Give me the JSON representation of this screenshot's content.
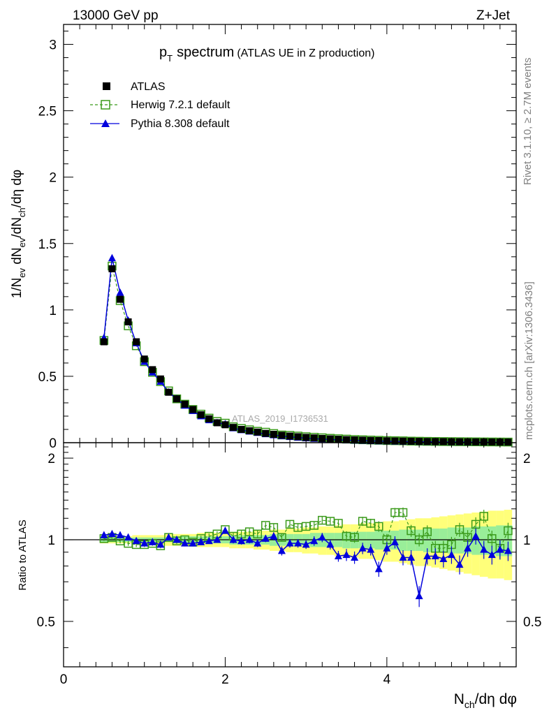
{
  "header": {
    "energy": "13000 GeV pp",
    "process": "Z+Jet"
  },
  "title": {
    "main": "p",
    "main_sub": "T",
    "main_rest": "spectrum",
    "paren": "(ATLAS UE in Z production)"
  },
  "side": {
    "rivet": "Rivet 3.1.10, ≥ 2.7M events",
    "mcplots": "mcplots.cern.ch [arXiv:1306.3436]"
  },
  "watermark": "ATLAS_2019_I1736531",
  "ratio_ylabel": "Ratio to ATLAS",
  "colors": {
    "data": "#000000",
    "herwig": "#3a9a1a",
    "pythia": "#0000dd",
    "band_yellow": "#ffff7a",
    "band_green": "#99ee99"
  },
  "chart_data": [
    {
      "type": "line",
      "title": "pT spectrum (ATLAS UE in Z production)",
      "xlabel": "Nch/dη dφ",
      "ylabel": "1/Nev dNev/dNch/dη dφ",
      "xlim": [
        0,
        5.6
      ],
      "ylim": [
        0,
        3.15
      ],
      "x_ticks": [
        0,
        2,
        4
      ],
      "y_ticks": [
        "0",
        "0.5",
        "1",
        "1.5",
        "2",
        "2.5",
        "3"
      ],
      "legend_position": "top-left",
      "x": [
        0.5,
        0.6,
        0.7,
        0.8,
        0.9,
        1.0,
        1.1,
        1.2,
        1.3,
        1.4,
        1.5,
        1.6,
        1.7,
        1.8,
        1.9,
        2.0,
        2.1,
        2.2,
        2.3,
        2.4,
        2.5,
        2.6,
        2.7,
        2.8,
        2.9,
        3.0,
        3.1,
        3.2,
        3.3,
        3.4,
        3.5,
        3.6,
        3.7,
        3.8,
        3.9,
        4.0,
        4.1,
        4.2,
        4.3,
        4.4,
        4.5,
        4.6,
        4.7,
        4.8,
        4.9,
        5.0,
        5.1,
        5.2,
        5.3,
        5.4,
        5.5
      ],
      "series": [
        {
          "name": "ATLAS",
          "marker": "filled-square",
          "values": [
            0.76,
            1.31,
            1.08,
            0.91,
            0.76,
            0.63,
            0.55,
            0.48,
            0.38,
            0.33,
            0.29,
            0.25,
            0.21,
            0.18,
            0.15,
            0.135,
            0.115,
            0.1,
            0.09,
            0.08,
            0.07,
            0.063,
            0.056,
            0.05,
            0.045,
            0.04,
            0.036,
            0.032,
            0.029,
            0.026,
            0.023,
            0.021,
            0.019,
            0.017,
            0.016,
            0.014,
            0.013,
            0.012,
            0.011,
            0.01,
            0.009,
            0.0085,
            0.008,
            0.0075,
            0.007,
            0.0065,
            0.006,
            0.0056,
            0.0052,
            0.0048,
            0.0045
          ]
        },
        {
          "name": "Herwig 7.2.1 default",
          "marker": "open-square",
          "values": [
            0.77,
            1.33,
            1.07,
            0.88,
            0.73,
            0.61,
            0.53,
            0.46,
            0.39,
            0.33,
            0.29,
            0.25,
            0.215,
            0.185,
            0.16,
            0.147,
            0.12,
            0.107,
            0.097,
            0.086,
            0.079,
            0.069,
            0.058,
            0.055,
            0.05,
            0.045,
            0.041,
            0.037,
            0.033,
            0.03,
            0.027,
            0.024,
            0.022,
            0.02,
            0.018,
            0.016,
            0.015,
            0.014,
            0.012,
            0.011,
            0.01,
            0.009,
            0.0085,
            0.008,
            0.0075,
            0.007,
            0.0065,
            0.006,
            0.0056,
            0.0052,
            0.0048
          ]
        },
        {
          "name": "Pythia 8.308 default",
          "marker": "filled-triangle",
          "values": [
            0.79,
            1.39,
            1.13,
            0.92,
            0.75,
            0.61,
            0.53,
            0.46,
            0.38,
            0.33,
            0.28,
            0.24,
            0.2,
            0.17,
            0.15,
            0.14,
            0.11,
            0.095,
            0.085,
            0.075,
            0.065,
            0.057,
            0.05,
            0.044,
            0.039,
            0.034,
            0.03,
            0.027,
            0.024,
            0.021,
            0.019,
            0.017,
            0.015,
            0.013,
            0.012,
            0.011,
            0.0095,
            0.0085,
            0.0078,
            0.007,
            0.0063,
            0.0057,
            0.0052,
            0.0048,
            0.0044,
            0.004,
            0.0037,
            0.0034,
            0.0031,
            0.0028,
            0.0026
          ]
        }
      ]
    },
    {
      "type": "line",
      "ylabel": "Ratio to ATLAS",
      "xlabel": "Nch/dη dφ",
      "xlim": [
        0,
        5.6
      ],
      "ylim": [
        0.34,
        2.28
      ],
      "y_ticks": [
        "0.5",
        "1",
        "2"
      ],
      "reference_line": 1,
      "x": [
        0.5,
        0.6,
        0.7,
        0.8,
        0.9,
        1.0,
        1.1,
        1.2,
        1.3,
        1.4,
        1.5,
        1.6,
        1.7,
        1.8,
        1.9,
        2.0,
        2.1,
        2.2,
        2.3,
        2.4,
        2.5,
        2.6,
        2.7,
        2.8,
        2.9,
        3.0,
        3.1,
        3.2,
        3.3,
        3.4,
        3.5,
        3.6,
        3.7,
        3.8,
        3.9,
        4.0,
        4.1,
        4.2,
        4.3,
        4.4,
        4.5,
        4.6,
        4.7,
        4.8,
        4.9,
        5.0,
        5.1,
        5.2,
        5.3,
        5.4,
        5.5
      ],
      "band_yellow_halfwidth": [
        0.03,
        0.03,
        0.03,
        0.03,
        0.04,
        0.04,
        0.04,
        0.04,
        0.05,
        0.05,
        0.05,
        0.05,
        0.06,
        0.06,
        0.06,
        0.06,
        0.07,
        0.07,
        0.07,
        0.08,
        0.08,
        0.09,
        0.09,
        0.1,
        0.1,
        0.11,
        0.11,
        0.12,
        0.12,
        0.13,
        0.14,
        0.14,
        0.15,
        0.15,
        0.16,
        0.17,
        0.17,
        0.18,
        0.19,
        0.2,
        0.2,
        0.21,
        0.22,
        0.23,
        0.24,
        0.25,
        0.26,
        0.27,
        0.28,
        0.28,
        0.29
      ],
      "band_green_halfwidth": [
        0.02,
        0.02,
        0.02,
        0.02,
        0.02,
        0.02,
        0.02,
        0.02,
        0.02,
        0.03,
        0.03,
        0.03,
        0.03,
        0.03,
        0.03,
        0.03,
        0.04,
        0.04,
        0.04,
        0.04,
        0.04,
        0.05,
        0.05,
        0.05,
        0.05,
        0.05,
        0.06,
        0.06,
        0.06,
        0.06,
        0.07,
        0.07,
        0.07,
        0.07,
        0.08,
        0.08,
        0.08,
        0.09,
        0.09,
        0.09,
        0.1,
        0.1,
        0.1,
        0.11,
        0.11,
        0.11,
        0.12,
        0.12,
        0.12,
        0.13,
        0.13
      ],
      "series": [
        {
          "name": "Herwig 7.2.1 default",
          "marker": "open-square",
          "values": [
            1.01,
            1.02,
            0.99,
            0.97,
            0.96,
            0.96,
            0.97,
            0.95,
            1.02,
            0.99,
            1.0,
            0.98,
            1.01,
            1.03,
            1.05,
            1.09,
            1.03,
            1.05,
            1.07,
            1.05,
            1.13,
            1.11,
            1.02,
            1.14,
            1.11,
            1.12,
            1.13,
            1.18,
            1.17,
            1.15,
            1.03,
            1.02,
            1.17,
            1.15,
            1.12,
            1.0,
            1.26,
            1.26,
            1.08,
            1.0,
            1.07,
            0.93,
            0.93,
            0.96,
            1.09,
            1.02,
            1.14,
            1.22,
            1.01,
            0.93,
            1.08
          ]
        },
        {
          "name": "Pythia 8.308 default",
          "marker": "filled-triangle",
          "values": [
            1.04,
            1.05,
            1.04,
            1.02,
            0.99,
            0.97,
            0.98,
            0.96,
            1.02,
            1.0,
            0.97,
            0.97,
            0.98,
            0.99,
            1.0,
            1.08,
            1.0,
            0.99,
            1.0,
            0.97,
            1.01,
            1.03,
            0.91,
            0.97,
            0.97,
            0.96,
            0.99,
            1.02,
            0.96,
            0.87,
            0.88,
            0.86,
            0.93,
            0.92,
            0.78,
            0.93,
            0.98,
            0.86,
            0.86,
            0.62,
            0.87,
            0.87,
            0.85,
            0.88,
            0.81,
            0.93,
            1.03,
            0.92,
            0.88,
            0.92,
            0.91
          ]
        }
      ]
    }
  ]
}
